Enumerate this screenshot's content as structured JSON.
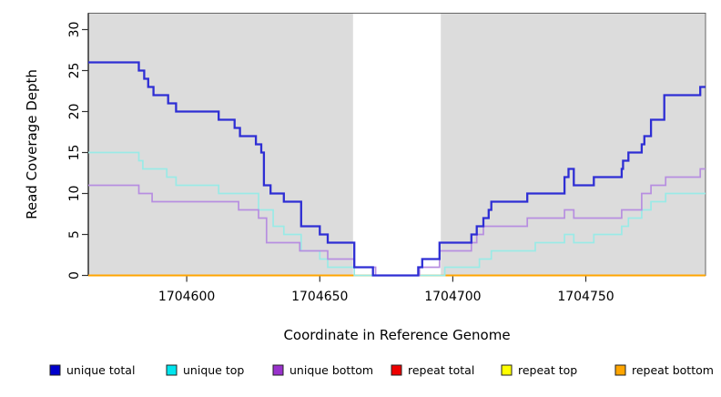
{
  "chart_data": {
    "type": "step-line",
    "title": "",
    "xlabel": "Coordinate in Reference Genome",
    "ylabel": "Read Coverage Depth",
    "x_axis": {
      "min": 1704563,
      "max": 1704795,
      "ticks": [
        1704600,
        1704650,
        1704700,
        1704750
      ]
    },
    "y_axis": {
      "min": 0,
      "max": 32,
      "ticks": [
        0,
        5,
        10,
        15,
        20,
        25,
        30
      ]
    },
    "grid": false,
    "legend_position": "bottom",
    "shade_color": "#DCDCDC",
    "shaded_regions": [
      {
        "from": 1704563,
        "to": 1704662.5
      },
      {
        "from": 1704695.5,
        "to": 1704795
      }
    ],
    "series": [
      {
        "name": "repeat total",
        "slug": "repeat-total",
        "line_color": "#CC0000",
        "width": 1.6,
        "points": [
          [
            1704563,
            0
          ]
        ]
      },
      {
        "name": "repeat top",
        "slug": "repeat-top",
        "line_color": "#EEEE00",
        "width": 1.6,
        "points": [
          [
            1704563,
            0
          ]
        ]
      },
      {
        "name": "repeat bottom",
        "slug": "repeat-bottom",
        "line_color": "#FFA500",
        "width": 2.0,
        "points": [
          [
            1704563,
            0
          ]
        ]
      },
      {
        "name": "unique top",
        "slug": "unique-top",
        "line_color": "#9AEAE6",
        "width": 1.7,
        "points": [
          [
            1704563,
            15
          ],
          [
            1704582,
            14
          ],
          [
            1704583.5,
            13
          ],
          [
            1704592.5,
            12
          ],
          [
            1704596,
            11
          ],
          [
            1704612,
            10
          ],
          [
            1704627,
            8
          ],
          [
            1704632.5,
            6
          ],
          [
            1704636.5,
            5
          ],
          [
            1704643,
            3
          ],
          [
            1704650,
            2
          ],
          [
            1704653,
            1
          ],
          [
            1704663,
            0
          ],
          [
            1704697,
            1
          ],
          [
            1704710,
            2
          ],
          [
            1704714.5,
            3
          ],
          [
            1704731,
            4
          ],
          [
            1704742,
            5
          ],
          [
            1704745.5,
            4
          ],
          [
            1704753,
            5
          ],
          [
            1704763.5,
            6
          ],
          [
            1704766,
            7
          ],
          [
            1704771,
            8
          ],
          [
            1704774.5,
            9
          ],
          [
            1704780,
            10
          ]
        ]
      },
      {
        "name": "unique bottom",
        "slug": "unique-bottom",
        "line_color": "#B78EE0",
        "width": 1.7,
        "points": [
          [
            1704563,
            11
          ],
          [
            1704582,
            10
          ],
          [
            1704587,
            9
          ],
          [
            1704619.5,
            8
          ],
          [
            1704627,
            7
          ],
          [
            1704630,
            4
          ],
          [
            1704642.5,
            3
          ],
          [
            1704653,
            2
          ],
          [
            1704663,
            1
          ],
          [
            1704671,
            0
          ],
          [
            1704687.5,
            1
          ],
          [
            1704695,
            3
          ],
          [
            1704707,
            4
          ],
          [
            1704709,
            5
          ],
          [
            1704711.5,
            6
          ],
          [
            1704728,
            7
          ],
          [
            1704742,
            8
          ],
          [
            1704745.5,
            7
          ],
          [
            1704763.5,
            8
          ],
          [
            1704771,
            10
          ],
          [
            1704774.5,
            11
          ],
          [
            1704780,
            12
          ],
          [
            1704793,
            13
          ]
        ]
      },
      {
        "name": "unique total",
        "slug": "unique-total",
        "line_color": "#2E2ED4",
        "width": 2.3,
        "points": [
          [
            1704563,
            26
          ],
          [
            1704582,
            25
          ],
          [
            1704584,
            24
          ],
          [
            1704585.5,
            23
          ],
          [
            1704587.5,
            22
          ],
          [
            1704593,
            21
          ],
          [
            1704596,
            20
          ],
          [
            1704612,
            19
          ],
          [
            1704618,
            18
          ],
          [
            1704620,
            17
          ],
          [
            1704626,
            16
          ],
          [
            1704628,
            15
          ],
          [
            1704629,
            11
          ],
          [
            1704631.5,
            10
          ],
          [
            1704636.5,
            9
          ],
          [
            1704643,
            6
          ],
          [
            1704650,
            5
          ],
          [
            1704653,
            4
          ],
          [
            1704663,
            1
          ],
          [
            1704670,
            0
          ],
          [
            1704687,
            1
          ],
          [
            1704688.5,
            2
          ],
          [
            1704695,
            4
          ],
          [
            1704707,
            5
          ],
          [
            1704709,
            6
          ],
          [
            1704711.5,
            7
          ],
          [
            1704713.5,
            8
          ],
          [
            1704714.5,
            9
          ],
          [
            1704728,
            10
          ],
          [
            1704742,
            12
          ],
          [
            1704743.5,
            13
          ],
          [
            1704745.5,
            11
          ],
          [
            1704753,
            12
          ],
          [
            1704763.5,
            13
          ],
          [
            1704764,
            14
          ],
          [
            1704766,
            15
          ],
          [
            1704771,
            16
          ],
          [
            1704772,
            17
          ],
          [
            1704774.5,
            19
          ],
          [
            1704779.5,
            22
          ],
          [
            1704793,
            23
          ]
        ]
      }
    ],
    "legend": [
      {
        "label": "unique total",
        "slug": "unique-total",
        "color": "#0000CC"
      },
      {
        "label": "unique top",
        "slug": "unique-top",
        "color": "#00E5EE"
      },
      {
        "label": "unique bottom",
        "slug": "unique-bottom",
        "color": "#9932CC"
      },
      {
        "label": "repeat total",
        "slug": "repeat-total",
        "color": "#EE0000"
      },
      {
        "label": "repeat top",
        "slug": "repeat-top",
        "color": "#FFFF00"
      },
      {
        "label": "repeat bottom",
        "slug": "repeat-bottom",
        "color": "#FFA500"
      }
    ]
  }
}
